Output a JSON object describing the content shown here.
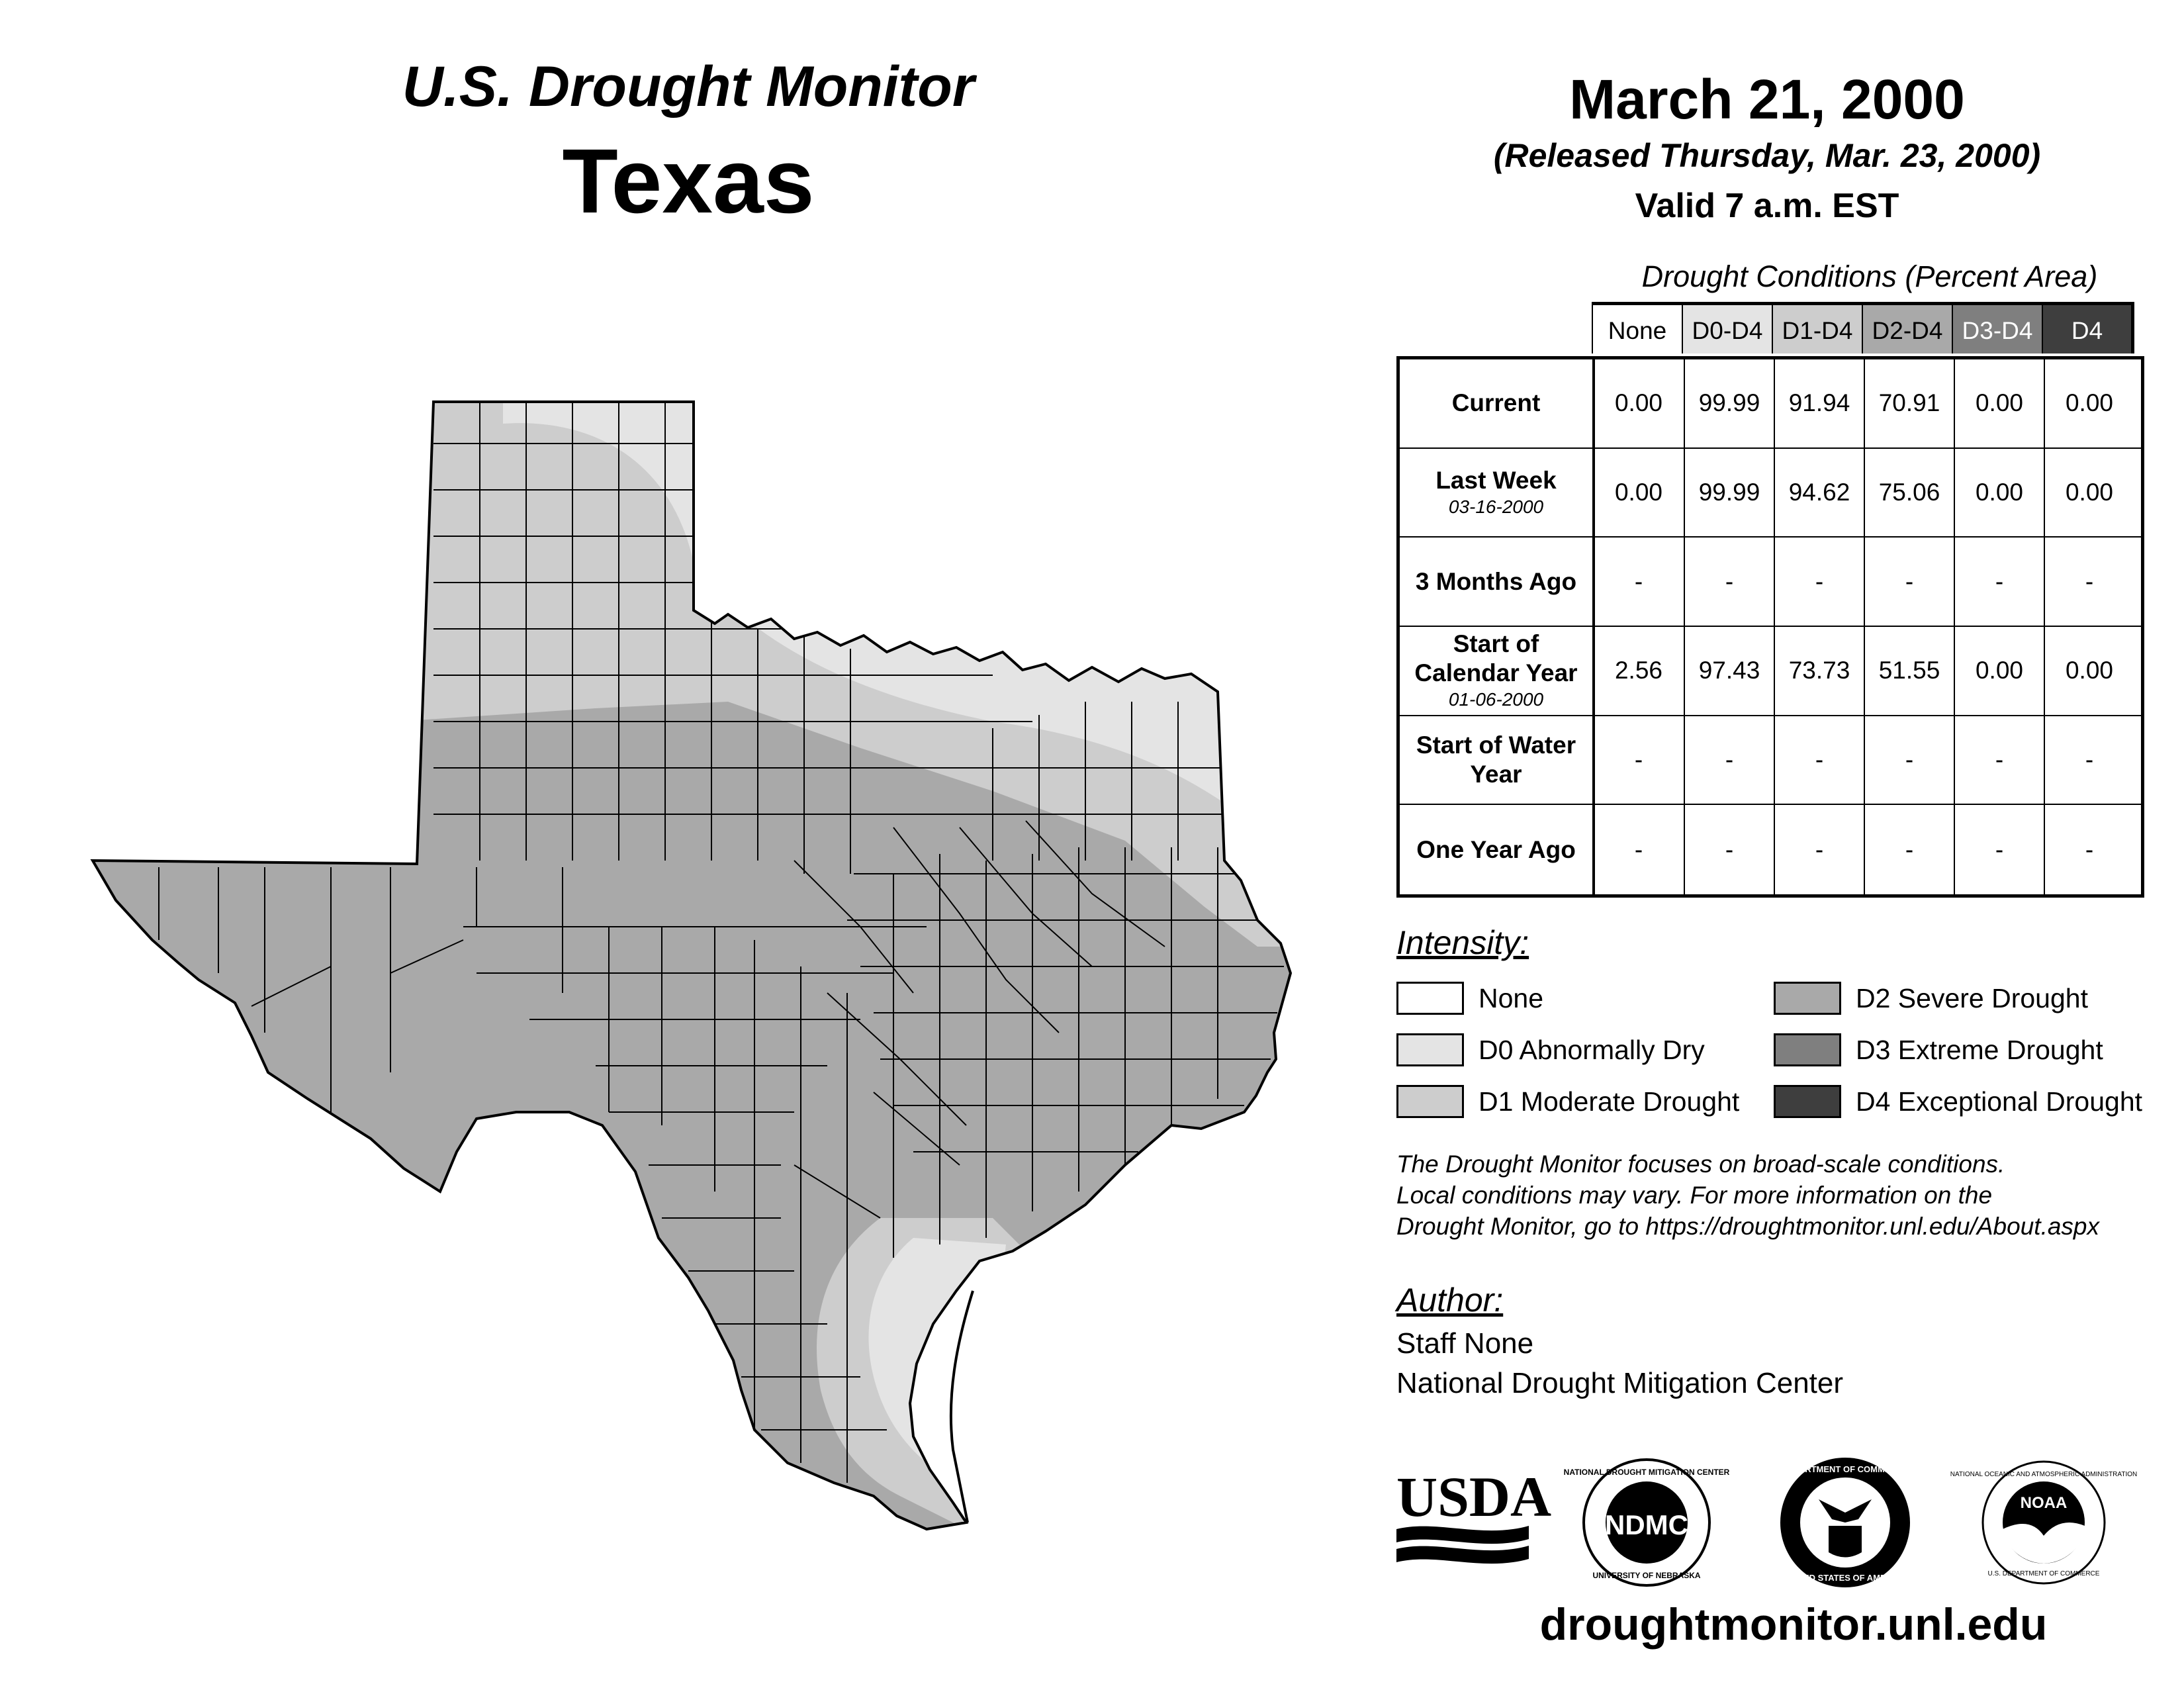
{
  "header": {
    "title": "U.S. Drought Monitor",
    "state": "Texas",
    "date": "March 21, 2000",
    "released": "(Released Thursday, Mar. 23, 2000)",
    "valid": "Valid 7 a.m. EST"
  },
  "table": {
    "caption": "Drought Conditions (Percent Area)",
    "columns": [
      "None",
      "D0-D4",
      "D1-D4",
      "D2-D4",
      "D3-D4",
      "D4"
    ],
    "column_colors": [
      "#ffffff",
      "#e4e4e4",
      "#cdcdcd",
      "#a9a9a9",
      "#7f7f7f",
      "#3e3e3e"
    ],
    "column_text_colors": [
      "#000000",
      "#000000",
      "#000000",
      "#000000",
      "#ffffff",
      "#ffffff"
    ],
    "rows": [
      {
        "label": "Current",
        "sub": "",
        "values": [
          "0.00",
          "99.99",
          "91.94",
          "70.91",
          "0.00",
          "0.00"
        ]
      },
      {
        "label": "Last Week",
        "sub": "03-16-2000",
        "values": [
          "0.00",
          "99.99",
          "94.62",
          "75.06",
          "0.00",
          "0.00"
        ]
      },
      {
        "label": "3 Months Ago",
        "sub": "",
        "values": [
          "-",
          "-",
          "-",
          "-",
          "-",
          "-"
        ]
      },
      {
        "label": "Start of Calendar Year",
        "sub": "01-06-2000",
        "values": [
          "2.56",
          "97.43",
          "73.73",
          "51.55",
          "0.00",
          "0.00"
        ]
      },
      {
        "label": "Start of Water Year",
        "sub": "",
        "values": [
          "-",
          "-",
          "-",
          "-",
          "-",
          "-"
        ]
      },
      {
        "label": "One Year Ago",
        "sub": "",
        "values": [
          "-",
          "-",
          "-",
          "-",
          "-",
          "-"
        ]
      }
    ]
  },
  "legend": {
    "title": "Intensity:",
    "items": [
      {
        "label": "None",
        "color": "#ffffff"
      },
      {
        "label": "D0 Abnormally Dry",
        "color": "#e4e4e4"
      },
      {
        "label": "D1 Moderate Drought",
        "color": "#cdcdcd"
      },
      {
        "label": "D2 Severe Drought",
        "color": "#a9a9a9"
      },
      {
        "label": "D3 Extreme Drought",
        "color": "#7f7f7f"
      },
      {
        "label": "D4 Exceptional Drought",
        "color": "#3e3e3e"
      }
    ]
  },
  "note": {
    "line1": "The Drought Monitor focuses on broad-scale conditions.",
    "line2": "Local conditions may vary. For more information on the",
    "line3": "Drought Monitor, go to https://droughtmonitor.unl.edu/About.aspx"
  },
  "author": {
    "title": "Author:",
    "name": "Staff None",
    "org": "National Drought Mitigation Center"
  },
  "logos": {
    "usda": "USDA",
    "ndmc": "NDMC",
    "ndmc_ring_top": "NATIONAL DROUGHT MITIGATION CENTER",
    "ndmc_ring_bottom": "UNIVERSITY OF NEBRASKA",
    "doc_ring_top": "DEPARTMENT OF COMMERCE",
    "doc_ring_bottom": "UNITED STATES OF AMERICA",
    "noaa": "NOAA",
    "noaa_ring_top": "NATIONAL OCEANIC AND ATMOSPHERIC ADMINISTRATION",
    "noaa_ring_bottom": "U.S. DEPARTMENT OF COMMERCE"
  },
  "website": "droughtmonitor.unl.edu"
}
